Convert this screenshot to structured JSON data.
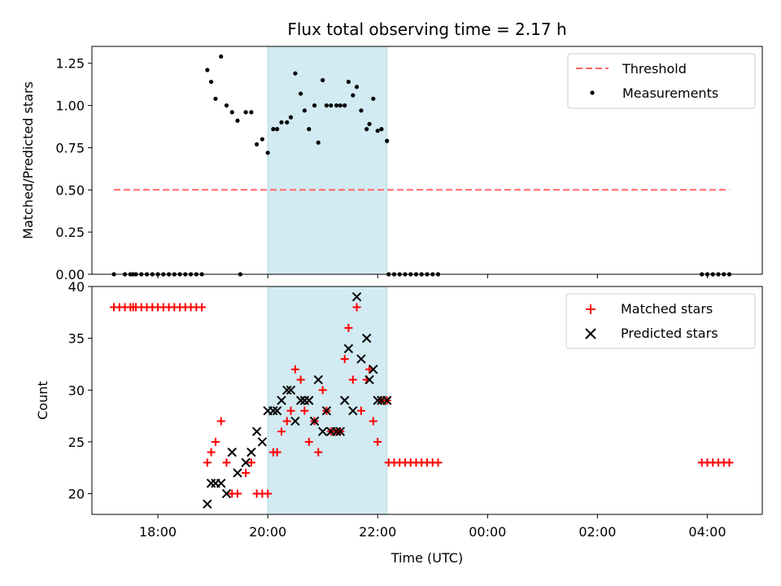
{
  "chart_data": [
    {
      "type": "scatter",
      "title": "Flux total observing time = 2.17 h",
      "xlabel": "",
      "ylabel": "Matched/Predicted stars",
      "x_unit": "hours since 00:00 UTC of the first night (24 = next midnight)",
      "xlim": [
        16.8,
        29.0
      ],
      "ylim": [
        0,
        1.35
      ],
      "yticks": [
        "0.00",
        "0.25",
        "0.50",
        "0.75",
        "1.00",
        "1.25"
      ],
      "shaded_interval": {
        "x": [
          20.0,
          22.17
        ],
        "color": "#add8e6"
      },
      "legend_position": "upper right",
      "series": [
        {
          "name": "Threshold",
          "style": "dashed-line",
          "color": "#ff6666",
          "x": [
            17.2,
            28.4
          ],
          "y": [
            0.5,
            0.5
          ]
        },
        {
          "name": "Measurements",
          "style": "dot",
          "color": "#000000",
          "x": [
            17.2,
            17.4,
            17.5,
            17.55,
            17.6,
            17.7,
            17.8,
            17.9,
            18.0,
            18.1,
            18.2,
            18.3,
            18.4,
            18.5,
            18.6,
            18.7,
            18.8,
            19.5,
            18.9,
            18.97,
            19.05,
            19.15,
            19.25,
            19.35,
            19.45,
            19.6,
            19.7,
            19.8,
            19.9,
            20.0,
            20.1,
            20.17,
            20.25,
            20.35,
            20.42,
            20.5,
            20.6,
            20.67,
            20.75,
            20.85,
            20.92,
            21.0,
            21.07,
            21.15,
            21.25,
            21.32,
            21.4,
            21.47,
            21.55,
            21.62,
            21.7,
            21.8,
            21.85,
            21.92,
            22.0,
            22.07,
            22.17,
            22.2,
            22.3,
            22.4,
            22.5,
            22.6,
            22.7,
            22.8,
            22.9,
            23.0,
            23.1,
            27.9,
            28.0,
            28.1,
            28.2,
            28.3,
            28.4
          ],
          "y": [
            0,
            0,
            0,
            0,
            0,
            0,
            0,
            0,
            0,
            0,
            0,
            0,
            0,
            0,
            0,
            0,
            0,
            0,
            1.21,
            1.14,
            1.04,
            1.29,
            1.0,
            0.96,
            0.91,
            0.96,
            0.96,
            0.77,
            0.8,
            0.72,
            0.86,
            0.86,
            0.9,
            0.9,
            0.93,
            1.19,
            1.07,
            0.97,
            0.86,
            1.0,
            0.78,
            1.15,
            1.0,
            1.0,
            1.0,
            1.0,
            1.0,
            1.14,
            1.06,
            1.11,
            0.97,
            0.86,
            0.89,
            1.04,
            0.85,
            0.86,
            0.79,
            0,
            0,
            0,
            0,
            0,
            0,
            0,
            0,
            0,
            0,
            0,
            0,
            0,
            0,
            0,
            0
          ]
        }
      ]
    },
    {
      "type": "scatter",
      "title": "",
      "xlabel": "Time (UTC)",
      "ylabel": "Count",
      "x_unit": "hours since 00:00 UTC of the first night (24 = next midnight)",
      "xlim": [
        16.8,
        29.0
      ],
      "ylim": [
        18,
        40
      ],
      "xticks": [
        {
          "value": 18,
          "label": "18:00"
        },
        {
          "value": 20,
          "label": "20:00"
        },
        {
          "value": 22,
          "label": "22:00"
        },
        {
          "value": 24,
          "label": "00:00"
        },
        {
          "value": 26,
          "label": "02:00"
        },
        {
          "value": 28,
          "label": "04:00"
        }
      ],
      "yticks": [
        "20",
        "25",
        "30",
        "35",
        "40"
      ],
      "shaded_interval": {
        "x": [
          20.0,
          22.17
        ],
        "color": "#add8e6"
      },
      "legend_position": "upper right",
      "series": [
        {
          "name": "Matched stars",
          "style": "plus",
          "color": "#ff0000",
          "x": [
            17.2,
            17.3,
            17.4,
            17.5,
            17.55,
            17.6,
            17.7,
            17.8,
            17.9,
            18.0,
            18.1,
            18.2,
            18.3,
            18.4,
            18.5,
            18.6,
            18.7,
            18.8,
            18.9,
            18.97,
            19.05,
            19.15,
            19.25,
            19.35,
            19.45,
            19.6,
            19.7,
            19.8,
            19.9,
            20.0,
            20.1,
            20.17,
            20.25,
            20.35,
            20.42,
            20.5,
            20.6,
            20.67,
            20.75,
            20.85,
            20.92,
            21.0,
            21.07,
            21.15,
            21.25,
            21.32,
            21.4,
            21.47,
            21.55,
            21.62,
            21.7,
            21.8,
            21.85,
            21.92,
            22.0,
            22.07,
            22.17,
            22.2,
            22.3,
            22.4,
            22.5,
            22.6,
            22.7,
            22.8,
            22.9,
            23.0,
            23.1,
            27.9,
            28.0,
            28.1,
            28.2,
            28.3,
            28.4
          ],
          "y": [
            38,
            38,
            38,
            38,
            38,
            38,
            38,
            38,
            38,
            38,
            38,
            38,
            38,
            38,
            38,
            38,
            38,
            38,
            23,
            24,
            25,
            27,
            23,
            20,
            20,
            22,
            23,
            20,
            20,
            20,
            24,
            24,
            26,
            27,
            28,
            32,
            31,
            28,
            25,
            27,
            24,
            30,
            28,
            26,
            26,
            26,
            33,
            36,
            31,
            38,
            28,
            31,
            32,
            27,
            25,
            29,
            29,
            23,
            23,
            23,
            23,
            23,
            23,
            23,
            23,
            23,
            23,
            23,
            23,
            23,
            23,
            23,
            23
          ]
        },
        {
          "name": "Predicted stars",
          "style": "x",
          "color": "#000000",
          "x": [
            18.9,
            18.97,
            19.05,
            19.15,
            19.25,
            19.35,
            19.45,
            19.6,
            19.7,
            19.8,
            19.9,
            20.0,
            20.1,
            20.17,
            20.25,
            20.35,
            20.42,
            20.5,
            20.6,
            20.67,
            20.75,
            20.85,
            20.92,
            21.0,
            21.07,
            21.15,
            21.25,
            21.32,
            21.4,
            21.47,
            21.55,
            21.62,
            21.7,
            21.8,
            21.85,
            21.92,
            22.0,
            22.07,
            22.17
          ],
          "y": [
            19,
            21,
            21,
            21,
            20,
            24,
            22,
            23,
            24,
            26,
            25,
            28,
            28,
            28,
            29,
            30,
            30,
            27,
            29,
            29,
            29,
            27,
            31,
            26,
            28,
            26,
            26,
            26,
            29,
            34,
            28,
            39,
            33,
            35,
            31,
            32,
            29,
            29,
            29
          ]
        }
      ]
    }
  ]
}
